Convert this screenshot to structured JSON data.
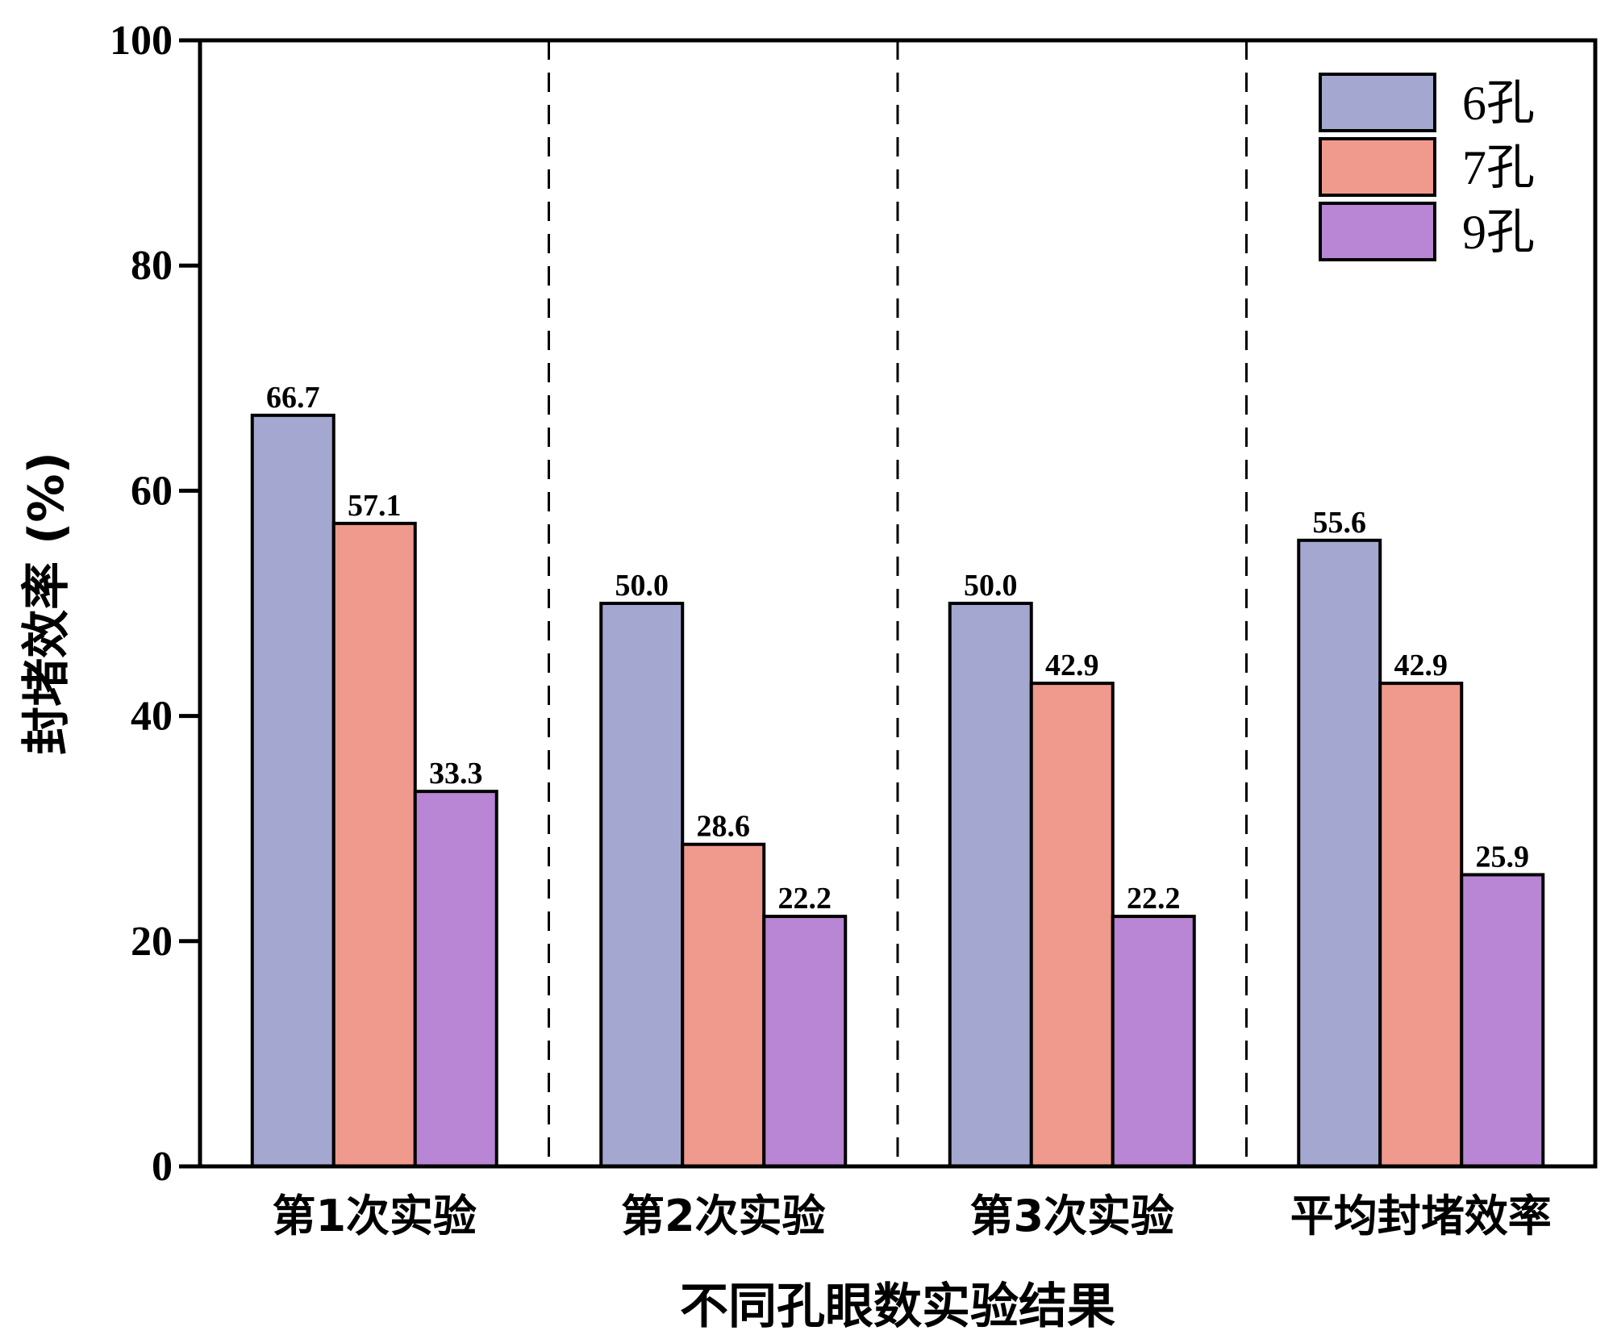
{
  "chart_data": {
    "type": "bar",
    "title": "",
    "xlabel": "不同孔眼数实验结果",
    "ylabel": "封堵效率 (%)",
    "ylim": [
      0,
      100
    ],
    "yticks": [
      "0",
      "20",
      "40",
      "60",
      "80",
      "100"
    ],
    "ytick_values": [
      0,
      20,
      40,
      60,
      80,
      100
    ],
    "categories": [
      "第1次实验",
      "第2次实验",
      "第3次实验",
      "平均封堵效率"
    ],
    "series": [
      {
        "name": "6孔",
        "color": "#a4a8d0",
        "values": [
          66.7,
          50.0,
          50.0,
          55.6
        ],
        "labels": [
          "66.7",
          "50.0",
          "50.0",
          "55.6"
        ]
      },
      {
        "name": "7孔",
        "color": "#ef9a8c",
        "values": [
          57.1,
          28.6,
          42.9,
          42.9
        ],
        "labels": [
          "57.1",
          "28.6",
          "42.9",
          "42.9"
        ]
      },
      {
        "name": "9孔",
        "color": "#b886d4",
        "values": [
          33.3,
          22.2,
          22.2,
          25.9
        ],
        "labels": [
          "33.3",
          "22.2",
          "22.2",
          "25.9"
        ]
      }
    ],
    "legend_position": "top-right",
    "group_separators": "dashed"
  }
}
